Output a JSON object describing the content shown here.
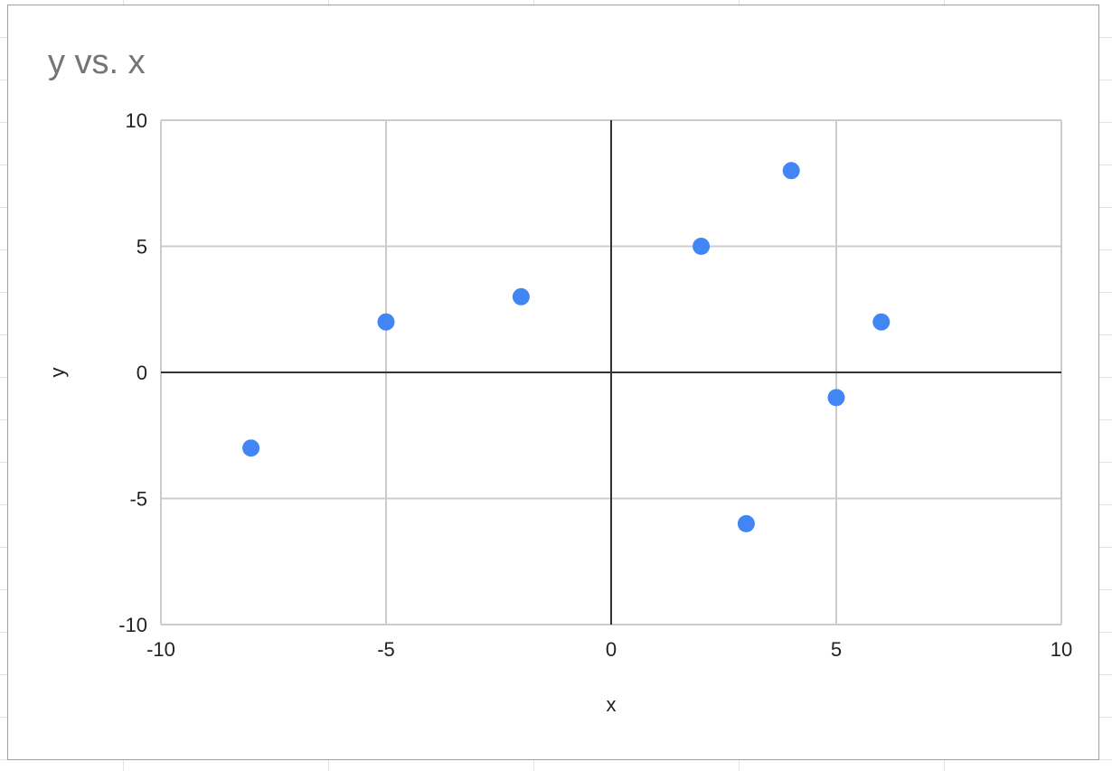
{
  "chart_data": {
    "type": "scatter",
    "title": "y vs. x",
    "xlabel": "x",
    "ylabel": "y",
    "xlim": [
      -10,
      10
    ],
    "ylim": [
      -10,
      10
    ],
    "x_ticks": [
      -10,
      -5,
      0,
      5,
      10
    ],
    "y_ticks": [
      -10,
      -5,
      0,
      5,
      10
    ],
    "x_tick_labels": [
      "-10",
      "-5",
      "0",
      "5",
      "10"
    ],
    "y_tick_labels": [
      "-10",
      "-5",
      "0",
      "5",
      "10"
    ],
    "grid": true,
    "legend": "none",
    "point_color": "#4285f4",
    "series": [
      {
        "x": [
          -8,
          -5,
          -2,
          2,
          3,
          4,
          5,
          6
        ],
        "y": [
          -3,
          2,
          3,
          5,
          -6,
          8,
          -1,
          2
        ]
      }
    ]
  }
}
